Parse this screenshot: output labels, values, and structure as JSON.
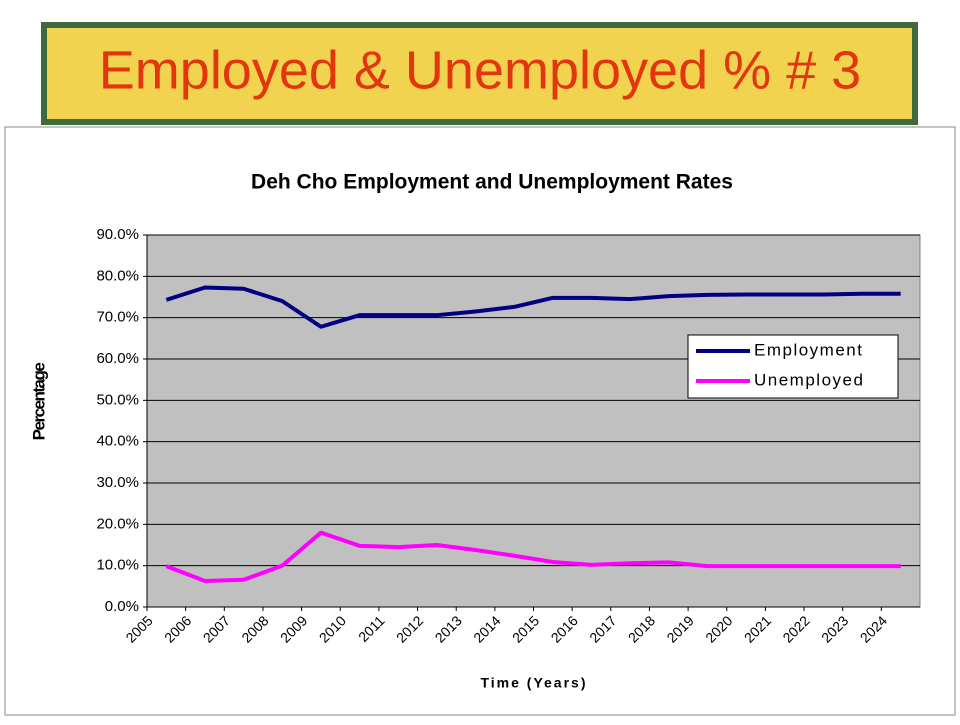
{
  "header": {
    "title": "Employed & Unemployed % # 3"
  },
  "chart_data": {
    "type": "line",
    "title": "Deh Cho Employment and Unemployment Rates",
    "x_label": "Time (Years)",
    "y_label": "Percentage",
    "categories": [
      "2005",
      "2006",
      "2007",
      "2008",
      "2009",
      "2010",
      "2011",
      "2012",
      "2013",
      "2014",
      "2015",
      "2016",
      "2017",
      "2018",
      "2019",
      "2020",
      "2021",
      "2022",
      "2023",
      "2024"
    ],
    "series": [
      {
        "name": "Employment",
        "color": "#000080",
        "values": [
          74.3,
          77.3,
          77.0,
          74.0,
          67.8,
          70.6,
          70.6,
          70.6,
          71.5,
          72.6,
          74.8,
          74.8,
          74.5,
          75.2,
          75.5,
          75.6,
          75.6,
          75.6,
          75.8,
          75.8
        ]
      },
      {
        "name": "Unemployed",
        "color": "#ff00ff",
        "values": [
          9.9,
          6.3,
          6.6,
          10.0,
          18.0,
          14.8,
          14.5,
          15.0,
          13.8,
          12.4,
          10.9,
          10.2,
          10.6,
          10.8,
          9.9,
          9.9,
          9.9,
          9.9,
          9.9,
          9.9
        ]
      }
    ],
    "ylim": [
      0,
      90
    ],
    "yticks": [
      {
        "value": 0,
        "label": "0.0%"
      },
      {
        "value": 10,
        "label": "10.0%"
      },
      {
        "value": 20,
        "label": "20.0%"
      },
      {
        "value": 30,
        "label": "30.0%"
      },
      {
        "value": 40,
        "label": "40.0%"
      },
      {
        "value": 50,
        "label": "50.0%"
      },
      {
        "value": 60,
        "label": "60.0%"
      },
      {
        "value": 70,
        "label": "70.0%"
      },
      {
        "value": 80,
        "label": "80.0%"
      },
      {
        "value": 90,
        "label": "90.0%"
      }
    ],
    "grid": true,
    "legend": "right"
  }
}
